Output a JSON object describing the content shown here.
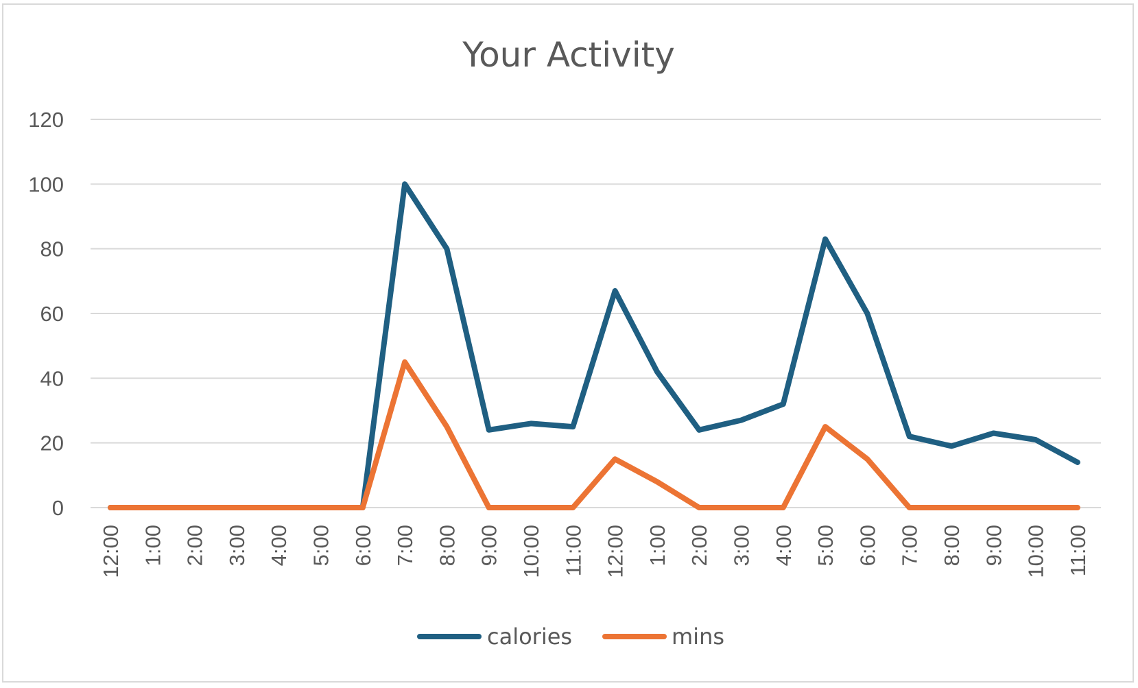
{
  "chart_data": {
    "type": "line",
    "title": "Your Activity",
    "xlabel": "",
    "ylabel": "",
    "categories": [
      "12:00",
      "1:00",
      "2:00",
      "3:00",
      "4:00",
      "5:00",
      "6:00",
      "7:00",
      "8:00",
      "9:00",
      "10:00",
      "11:00",
      "12:00",
      "1:00",
      "2:00",
      "3:00",
      "4:00",
      "5:00",
      "6:00",
      "7:00",
      "8:00",
      "9:00",
      "10:00",
      "11:00"
    ],
    "series": [
      {
        "name": "calories",
        "color": "#1f5f82",
        "values": [
          0,
          0,
          0,
          0,
          0,
          0,
          0,
          100,
          80,
          24,
          26,
          25,
          67,
          42,
          24,
          27,
          32,
          83,
          60,
          22,
          19,
          23,
          21,
          14
        ]
      },
      {
        "name": "mins",
        "color": "#ec7434",
        "values": [
          0,
          0,
          0,
          0,
          0,
          0,
          0,
          45,
          25,
          0,
          0,
          0,
          15,
          8,
          0,
          0,
          0,
          25,
          15,
          0,
          0,
          0,
          0,
          0
        ]
      }
    ],
    "ylim": [
      0,
      120
    ],
    "yticks": [
      "0",
      "20",
      "40",
      "60",
      "80",
      "100",
      "120"
    ],
    "grid": true,
    "legend_position": "bottom"
  }
}
